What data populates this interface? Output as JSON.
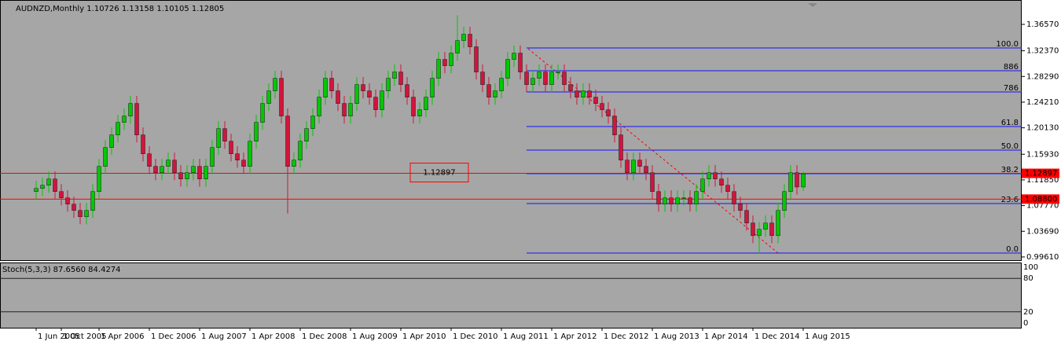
{
  "chart_data": {
    "type": "candlestick",
    "title": "AUDNZD,Monthly  1.10726 1.13158 1.10105 1.12805",
    "up_color": "#00c800",
    "down_color": "#d2143c",
    "categories": [
      "1 Jun 2005",
      null,
      null,
      null,
      "1 Oct 2005",
      null,
      null,
      null,
      null,
      null,
      "1 Apr 2006",
      null,
      null,
      null,
      null,
      null,
      null,
      null,
      "1 Dec 2006",
      null,
      null,
      null,
      null,
      null,
      null,
      null,
      "1 Aug 2007",
      null,
      null,
      null,
      null,
      null,
      null,
      null,
      "1 Apr 2008",
      null,
      null,
      null,
      null,
      null,
      null,
      null,
      "1 Dec 2008",
      null,
      null,
      null,
      null,
      null,
      null,
      null,
      "1 Aug 2009",
      null,
      null,
      null,
      null,
      null,
      null,
      null,
      "1 Apr 2010",
      null,
      null,
      null,
      null,
      null,
      null,
      null,
      "1 Dec 2010",
      null,
      null,
      null,
      null,
      null,
      null,
      null,
      "1 Aug 2011",
      null,
      null,
      null,
      null,
      null,
      null,
      null,
      "1 Apr 2012",
      null,
      null,
      null,
      null,
      null,
      null,
      null,
      "1 Dec 2012",
      null,
      null,
      null,
      null,
      null,
      null,
      null,
      "1 Aug 2013",
      null,
      null,
      null,
      null,
      null,
      null,
      null,
      "1 Apr 2014",
      null,
      null,
      null,
      null,
      null,
      null,
      null,
      "1 Dec 2014",
      null,
      null,
      null,
      null,
      null,
      null,
      null,
      "1 Aug 2015"
    ],
    "open": [
      1.1,
      1.105,
      1.11,
      1.12,
      1.1,
      1.09,
      1.08,
      1.07,
      1.06,
      1.07,
      1.1,
      1.14,
      1.17,
      1.19,
      1.21,
      1.22,
      1.24,
      1.19,
      1.16,
      1.14,
      1.13,
      1.14,
      1.15,
      1.13,
      1.12,
      1.13,
      1.14,
      1.12,
      1.14,
      1.17,
      1.2,
      1.18,
      1.16,
      1.15,
      1.14,
      1.18,
      1.21,
      1.24,
      1.26,
      1.28,
      1.22,
      1.14,
      1.15,
      1.18,
      1.2,
      1.22,
      1.25,
      1.28,
      1.26,
      1.24,
      1.22,
      1.24,
      1.27,
      1.26,
      1.25,
      1.23,
      1.26,
      1.28,
      1.29,
      1.27,
      1.25,
      1.22,
      1.23,
      1.25,
      1.28,
      1.31,
      1.3,
      1.32,
      1.34,
      1.35,
      1.33,
      1.29,
      1.27,
      1.25,
      1.26,
      1.28,
      1.31,
      1.32,
      1.29,
      1.27,
      1.28,
      1.29,
      1.27,
      1.29,
      1.29,
      1.27,
      1.26,
      1.25,
      1.26,
      1.25,
      1.24,
      1.23,
      1.22,
      1.19,
      1.15,
      1.13,
      1.15,
      1.14,
      1.13,
      1.1,
      1.08,
      1.09,
      1.08,
      1.09,
      1.09,
      1.08,
      1.1,
      1.12,
      1.13,
      1.12,
      1.11,
      1.1,
      1.08,
      1.07,
      1.05,
      1.03,
      1.04,
      1.05,
      1.03,
      1.07,
      1.1,
      1.13,
      1.10726
    ],
    "high": [
      1.117,
      1.122,
      1.132,
      1.132,
      1.112,
      1.102,
      1.092,
      1.082,
      1.082,
      1.112,
      1.152,
      1.182,
      1.202,
      1.222,
      1.232,
      1.252,
      1.252,
      1.202,
      1.172,
      1.152,
      1.152,
      1.162,
      1.162,
      1.142,
      1.142,
      1.152,
      1.152,
      1.152,
      1.182,
      1.212,
      1.212,
      1.192,
      1.172,
      1.162,
      1.192,
      1.222,
      1.252,
      1.272,
      1.292,
      1.292,
      1.232,
      1.162,
      1.192,
      1.212,
      1.232,
      1.262,
      1.292,
      1.292,
      1.272,
      1.252,
      1.252,
      1.282,
      1.282,
      1.272,
      1.262,
      1.272,
      1.292,
      1.302,
      1.302,
      1.282,
      1.262,
      1.242,
      1.262,
      1.292,
      1.322,
      1.322,
      1.332,
      1.38,
      1.362,
      1.362,
      1.342,
      1.302,
      1.282,
      1.272,
      1.292,
      1.322,
      1.332,
      1.332,
      1.302,
      1.292,
      1.302,
      1.302,
      1.302,
      1.302,
      1.302,
      1.282,
      1.272,
      1.272,
      1.272,
      1.262,
      1.252,
      1.242,
      1.232,
      1.202,
      1.162,
      1.162,
      1.162,
      1.152,
      1.142,
      1.112,
      1.102,
      1.102,
      1.102,
      1.102,
      1.102,
      1.112,
      1.132,
      1.142,
      1.142,
      1.132,
      1.122,
      1.112,
      1.092,
      1.082,
      1.062,
      1.052,
      1.062,
      1.062,
      1.082,
      1.112,
      1.142,
      1.142,
      1.13158
    ],
    "low": [
      1.088,
      1.093,
      1.098,
      1.088,
      1.078,
      1.068,
      1.058,
      1.048,
      1.048,
      1.058,
      1.088,
      1.128,
      1.158,
      1.178,
      1.198,
      1.208,
      1.178,
      1.148,
      1.128,
      1.118,
      1.118,
      1.128,
      1.118,
      1.108,
      1.108,
      1.118,
      1.108,
      1.108,
      1.128,
      1.158,
      1.168,
      1.148,
      1.138,
      1.128,
      1.128,
      1.168,
      1.198,
      1.228,
      1.248,
      1.208,
      1.065,
      1.128,
      1.138,
      1.168,
      1.188,
      1.208,
      1.238,
      1.248,
      1.228,
      1.208,
      1.208,
      1.228,
      1.248,
      1.238,
      1.218,
      1.218,
      1.248,
      1.268,
      1.258,
      1.238,
      1.208,
      1.208,
      1.218,
      1.238,
      1.268,
      1.288,
      1.288,
      1.308,
      1.328,
      1.318,
      1.278,
      1.258,
      1.238,
      1.238,
      1.248,
      1.268,
      1.298,
      1.278,
      1.258,
      1.258,
      1.268,
      1.258,
      1.258,
      1.278,
      1.258,
      1.248,
      1.238,
      1.238,
      1.238,
      1.228,
      1.218,
      1.208,
      1.178,
      1.138,
      1.118,
      1.118,
      1.128,
      1.118,
      1.088,
      1.068,
      1.068,
      1.068,
      1.068,
      1.078,
      1.068,
      1.068,
      1.088,
      1.108,
      1.108,
      1.098,
      1.088,
      1.068,
      1.058,
      1.038,
      1.018,
      1.002,
      1.028,
      1.018,
      1.018,
      1.058,
      1.088,
      1.095,
      1.10105
    ],
    "close": [
      1.105,
      1.11,
      1.12,
      1.1,
      1.09,
      1.08,
      1.07,
      1.06,
      1.07,
      1.1,
      1.14,
      1.17,
      1.19,
      1.21,
      1.22,
      1.24,
      1.19,
      1.16,
      1.14,
      1.13,
      1.14,
      1.15,
      1.13,
      1.12,
      1.13,
      1.14,
      1.12,
      1.14,
      1.17,
      1.2,
      1.18,
      1.16,
      1.15,
      1.14,
      1.18,
      1.21,
      1.24,
      1.26,
      1.28,
      1.22,
      1.14,
      1.15,
      1.18,
      1.2,
      1.22,
      1.25,
      1.28,
      1.26,
      1.24,
      1.22,
      1.24,
      1.27,
      1.26,
      1.25,
      1.23,
      1.26,
      1.28,
      1.29,
      1.27,
      1.25,
      1.22,
      1.23,
      1.25,
      1.28,
      1.31,
      1.3,
      1.32,
      1.34,
      1.35,
      1.33,
      1.29,
      1.27,
      1.25,
      1.26,
      1.28,
      1.31,
      1.32,
      1.29,
      1.27,
      1.28,
      1.29,
      1.27,
      1.29,
      1.29,
      1.27,
      1.26,
      1.25,
      1.26,
      1.25,
      1.24,
      1.23,
      1.22,
      1.19,
      1.15,
      1.13,
      1.15,
      1.14,
      1.13,
      1.1,
      1.08,
      1.09,
      1.08,
      1.09,
      1.09,
      1.08,
      1.1,
      1.12,
      1.13,
      1.12,
      1.11,
      1.1,
      1.08,
      1.07,
      1.05,
      1.03,
      1.04,
      1.05,
      1.03,
      1.07,
      1.1,
      1.13,
      1.10726,
      1.12805
    ],
    "ylim": [
      0.9898,
      1.3994
    ],
    "yticks": [
      {
        "value": 1.3657,
        "label": "1.36570"
      },
      {
        "value": 1.3237,
        "label": "1.32370"
      },
      {
        "value": 1.2829,
        "label": "1.28290"
      },
      {
        "value": 1.2421,
        "label": "1.24210"
      },
      {
        "value": 1.2013,
        "label": "1.20130"
      },
      {
        "value": 1.1593,
        "label": "1.15930"
      },
      {
        "value": 1.1185,
        "label": "1.11850"
      },
      {
        "value": 1.0777,
        "label": "1.07770"
      },
      {
        "value": 1.0369,
        "label": "1.03690"
      },
      {
        "value": 0.9961,
        "label": "0.99610"
      }
    ],
    "fib_color": "#1414ff",
    "fib_levels": [
      {
        "value": 1.3282,
        "label": "100.0"
      },
      {
        "value": 1.292,
        "label": "886"
      },
      {
        "value": 1.2583,
        "label": "786"
      },
      {
        "value": 1.2033,
        "label": "61.8"
      },
      {
        "value": 1.1659,
        "label": "50.0"
      },
      {
        "value": 1.1284,
        "label": "38.2"
      },
      {
        "value": 1.081,
        "label": "23.6"
      },
      {
        "value": 1.0023,
        "label": "0.0"
      }
    ],
    "hline_color": "#ff0000",
    "hlines": [
      {
        "value": 1.12897,
        "label": "1.12897"
      },
      {
        "value": 1.088,
        "label": "1.08800"
      }
    ],
    "oscillator": {
      "title": "Stoch(5,3,3) 87.6560 84.4274",
      "ylim": [
        0,
        100
      ],
      "yticks": [
        100,
        80,
        20,
        0
      ]
    }
  }
}
